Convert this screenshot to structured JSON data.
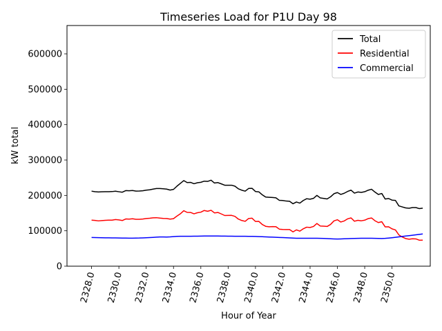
{
  "chart_data": {
    "type": "line",
    "title": "Timeseries Load for P1U   Day 98",
    "xlabel": "Hour of Year",
    "ylabel": "kW total",
    "xlim": [
      2326.2,
      2352.8
    ],
    "ylim": [
      0,
      680000
    ],
    "xticks": [
      2328,
      2330,
      2332,
      2334,
      2336,
      2338,
      2340,
      2342,
      2344,
      2346,
      2348,
      2350
    ],
    "xtick_labels": [
      "2328.0",
      "2330.0",
      "2332.0",
      "2334.0",
      "2336.0",
      "2338.0",
      "2340.0",
      "2342.0",
      "2344.0",
      "2346.0",
      "2348.0",
      "2350.0"
    ],
    "yticks": [
      0,
      100000,
      200000,
      300000,
      400000,
      500000,
      600000
    ],
    "ytick_labels": [
      "0",
      "100000",
      "200000",
      "300000",
      "400000",
      "500000",
      "600000"
    ],
    "legend_position": "top-right",
    "x_start": 2328,
    "x_step": 0.25,
    "series": [
      {
        "name": "Total",
        "color": "#000000",
        "values": [
          212000,
          210500,
          209800,
          210200,
          210500,
          210500,
          210800,
          211800,
          210300,
          209000,
          213500,
          213000,
          213800,
          212200,
          212400,
          213200,
          214800,
          215800,
          217800,
          219400,
          219400,
          218800,
          217800,
          215000,
          217000,
          226000,
          234000,
          241800,
          236200,
          236800,
          233000,
          235800,
          237000,
          240200,
          239600,
          243000,
          235000,
          236200,
          232600,
          228800,
          228600,
          228800,
          226000,
          218600,
          214600,
          212000,
          219600,
          220000,
          211000,
          210000,
          201600,
          195400,
          194600,
          194000,
          193200,
          186000,
          185600,
          184000,
          183400,
          176400,
          181400,
          178200,
          185600,
          190600,
          189200,
          191600,
          200000,
          192800,
          191400,
          190000,
          196000,
          204800,
          208000,
          202800,
          206000,
          211200,
          214800,
          206400,
          209600,
          208400,
          210400,
          214600,
          217400,
          209400,
          202600,
          205400,
          189800,
          191200,
          186600,
          185800,
          170400,
          167400,
          164600,
          163600,
          165600,
          165600,
          162600,
          164000
        ]
      },
      {
        "name": "Residential",
        "color": "#ff0000",
        "values": [
          130000,
          129400,
          128000,
          128800,
          129600,
          130000,
          130000,
          131800,
          130800,
          129000,
          133400,
          133000,
          134000,
          132400,
          132600,
          133200,
          134600,
          135400,
          136600,
          137000,
          135800,
          135000,
          134600,
          133000,
          134200,
          141600,
          148000,
          156800,
          152000,
          151800,
          148000,
          151000,
          152600,
          157400,
          155200,
          158000,
          150600,
          151800,
          147600,
          143200,
          143400,
          143600,
          140600,
          133000,
          129000,
          126800,
          134800,
          135600,
          126400,
          126600,
          117800,
          112600,
          111400,
          111800,
          111600,
          104600,
          103800,
          103400,
          103600,
          97000,
          102600,
          99000,
          105600,
          110200,
          109400,
          112200,
          120600,
          113400,
          113000,
          112200,
          118000,
          128000,
          131200,
          124800,
          127800,
          133800,
          136400,
          127000,
          129600,
          128200,
          130000,
          134400,
          136200,
          128400,
          123200,
          125600,
          111000,
          111400,
          105400,
          102400,
          88400,
          82400,
          78000,
          76200,
          77400,
          77000,
          73400,
          73600
        ]
      },
      {
        "name": "Commercial",
        "color": "#0000ff",
        "values": [
          81000,
          80800,
          80600,
          80400,
          80200,
          80200,
          80000,
          79800,
          79600,
          79400,
          79400,
          79200,
          79200,
          79400,
          79600,
          80000,
          80400,
          80800,
          81400,
          82000,
          82600,
          82600,
          82400,
          82800,
          83600,
          84200,
          84400,
          84600,
          84600,
          84600,
          84800,
          84800,
          85000,
          85200,
          85200,
          85200,
          85200,
          85200,
          85000,
          85000,
          84800,
          84800,
          84600,
          84600,
          84400,
          84400,
          84200,
          84200,
          84000,
          83600,
          83200,
          82800,
          82400,
          82000,
          81600,
          81200,
          80800,
          80400,
          79800,
          79400,
          79000,
          78800,
          78800,
          78800,
          78800,
          78800,
          78800,
          78600,
          78400,
          78000,
          77400,
          77000,
          76800,
          77000,
          77400,
          77800,
          78200,
          78400,
          78600,
          78800,
          78800,
          78800,
          78800,
          78600,
          78400,
          78200,
          78600,
          79400,
          80400,
          81600,
          82800,
          84000,
          85200,
          86200,
          87400,
          88600,
          89800,
          91000
        ]
      }
    ]
  }
}
